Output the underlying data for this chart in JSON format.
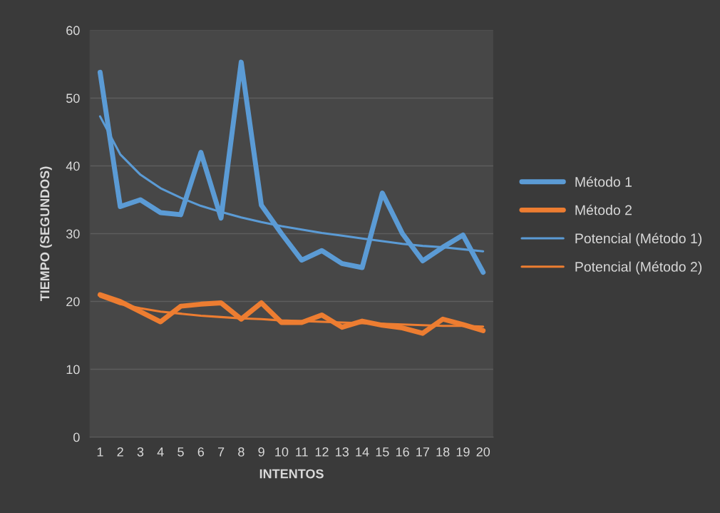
{
  "chart_data": {
    "type": "line",
    "xlabel": "INTENTOS",
    "ylabel": "TIEMPO (SEGUNDOS)",
    "categories": [
      "1",
      "2",
      "3",
      "4",
      "5",
      "6",
      "7",
      "8",
      "9",
      "10",
      "11",
      "12",
      "13",
      "14",
      "15",
      "16",
      "17",
      "18",
      "19",
      "20"
    ],
    "ylim": [
      0,
      60
    ],
    "yticks": [
      0,
      10,
      20,
      30,
      40,
      50,
      60
    ],
    "grid": "y",
    "legend": "right",
    "series": [
      {
        "name": "Método 1",
        "color": "#5b9bd5",
        "values": [
          53.8,
          34,
          35,
          33.1,
          32.8,
          42,
          32.3,
          55.3,
          34.2,
          30,
          26.1,
          27.5,
          25.6,
          25,
          36,
          30,
          26,
          28,
          29.8,
          24.3
        ]
      },
      {
        "name": "Método 2",
        "color": "#ed7d31",
        "values": [
          21,
          20,
          18.5,
          17,
          19.3,
          19.6,
          19.8,
          17.4,
          19.8,
          16.9,
          16.9,
          18,
          16.2,
          17.1,
          16.5,
          16.1,
          15.3,
          17.4,
          16.6,
          15.7
        ]
      },
      {
        "name": "Potencial (Método 1)",
        "color": "#5b9bd5",
        "values": [
          47.3,
          41.7,
          38.7,
          36.7,
          35.3,
          34.1,
          33.2,
          32.4,
          31.7,
          31.1,
          30.6,
          30.1,
          29.7,
          29.3,
          28.9,
          28.5,
          28.2,
          28.0,
          27.7,
          27.4
        ]
      },
      {
        "name": "Potencial (Método 2)",
        "color": "#ed7d31",
        "values": [
          20.7,
          19.6,
          19.0,
          18.5,
          18.2,
          17.9,
          17.7,
          17.5,
          17.4,
          17.2,
          17.1,
          17.0,
          16.9,
          16.8,
          16.7,
          16.6,
          16.5,
          16.4,
          16.4,
          16.3
        ]
      }
    ]
  }
}
